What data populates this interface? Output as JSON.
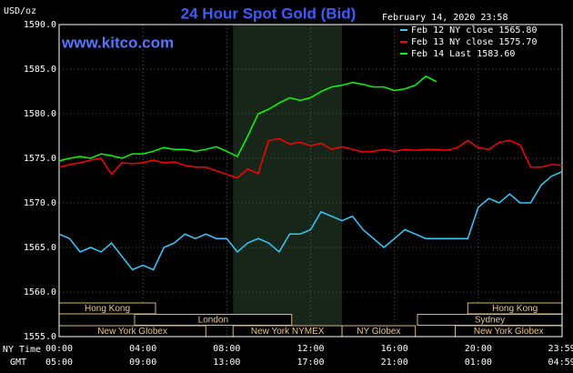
{
  "chart_data": {
    "type": "line",
    "title": "24 Hour Spot Gold (Bid)",
    "watermark": "www.kitco.com",
    "timestamp": "February 14, 2020 23:58",
    "y_label": "USD/oz",
    "x_axis_labels": [
      "NY Time",
      "GMT"
    ],
    "x": [
      0,
      0.5,
      1,
      1.5,
      2,
      2.5,
      3,
      3.5,
      4,
      4.5,
      5,
      5.5,
      6,
      6.5,
      7,
      7.5,
      8,
      8.5,
      9,
      9.5,
      10,
      10.5,
      11,
      11.5,
      12,
      12.5,
      13,
      13.5,
      14,
      14.5,
      15,
      15.5,
      16,
      16.5,
      17,
      17.5,
      18,
      18.5,
      19,
      19.5,
      20,
      20.5,
      21,
      21.5,
      22,
      22.5,
      23,
      23.5,
      24
    ],
    "series": [
      {
        "name": "Feb 12 NY close 1565.80",
        "color": "#33ccff",
        "values": [
          1566.5,
          1566,
          1564.5,
          1565,
          1564.5,
          1565.5,
          1564,
          1562.5,
          1563,
          1562.5,
          1565,
          1565.5,
          1566.5,
          1566,
          1566.5,
          1566,
          1566,
          1564.5,
          1565.5,
          1566,
          1565.5,
          1564.5,
          1566.5,
          1566.5,
          1567,
          1569,
          1568.5,
          1568,
          1568.5,
          1567,
          1566,
          1565,
          1566,
          1567,
          1566.5,
          1566,
          1566,
          1566,
          1566,
          1566,
          1569.5,
          1570.5,
          1570,
          1571,
          1570,
          1570,
          1572,
          1573,
          1573.5
        ]
      },
      {
        "name": "Feb 13 NY close 1575.70",
        "color": "#ff0000",
        "values": [
          1574,
          1574.3,
          1574.5,
          1574.8,
          1575,
          1573.2,
          1574.5,
          1574.4,
          1574.5,
          1574.8,
          1574.5,
          1574.6,
          1574.2,
          1574,
          1574,
          1573.6,
          1573.2,
          1572.8,
          1573.8,
          1573.3,
          1577,
          1577.2,
          1576.6,
          1576.8,
          1576.4,
          1576.7,
          1576,
          1576.3,
          1576,
          1575.7,
          1575.8,
          1576,
          1575.8,
          1576,
          1575.9,
          1576,
          1576,
          1575.9,
          1576.2,
          1577,
          1576.2,
          1576,
          1576.8,
          1577,
          1576.5,
          1574,
          1574,
          1574.3,
          1574.2
        ]
      },
      {
        "name": "Feb 14 Last 1583.60",
        "color": "#00ff00",
        "values": [
          1574.7,
          1575,
          1575.2,
          1575,
          1575.5,
          1575.3,
          1575,
          1575.5,
          1575.5,
          1575.8,
          1576.2,
          1576,
          1576,
          1575.8,
          1576,
          1576.3,
          1575.8,
          1575.2,
          1577.5,
          1580,
          1580.5,
          1581.2,
          1581.8,
          1581.5,
          1581.8,
          1582.5,
          1583,
          1583.2,
          1583.5,
          1583.3,
          1583,
          1583,
          1582.6,
          1582.8,
          1583.2,
          1584.2,
          1583.6,
          null,
          null,
          null,
          null,
          null,
          null,
          null,
          null,
          null,
          null,
          null,
          null
        ]
      }
    ],
    "xlim": [
      0,
      24
    ],
    "xticks": [
      {
        "value": 0,
        "label": "00:00"
      },
      {
        "value": 4,
        "label": "04:00"
      },
      {
        "value": 8,
        "label": "08:00"
      },
      {
        "value": 12,
        "label": "12:00"
      },
      {
        "value": 16,
        "label": "16:00"
      },
      {
        "value": 20,
        "label": "20:00"
      },
      {
        "value": 23.983,
        "label": "23:59"
      }
    ],
    "gmt_labels": [
      "05:00",
      "09:00",
      "13:00",
      "17:00",
      "21:00",
      "01:00",
      "04:59"
    ],
    "ylim": [
      1555,
      1590
    ],
    "yticks": [
      {
        "value": 1555,
        "label": "1555.0"
      },
      {
        "value": 1560,
        "label": "1560.0"
      },
      {
        "value": 1565,
        "label": "1565.0"
      },
      {
        "value": 1570,
        "label": "1570.0"
      },
      {
        "value": 1575,
        "label": "1575.0"
      },
      {
        "value": 1580,
        "label": "1580.0"
      },
      {
        "value": 1585,
        "label": "1585.0"
      },
      {
        "value": 1590,
        "label": "1590.0"
      }
    ],
    "grid": true,
    "sessions": [
      "Hong Kong",
      "Hong Kong",
      "London",
      "Sydney",
      "New York Globex",
      "New York NYMEX",
      "NY Globex",
      "New York Globex"
    ]
  }
}
